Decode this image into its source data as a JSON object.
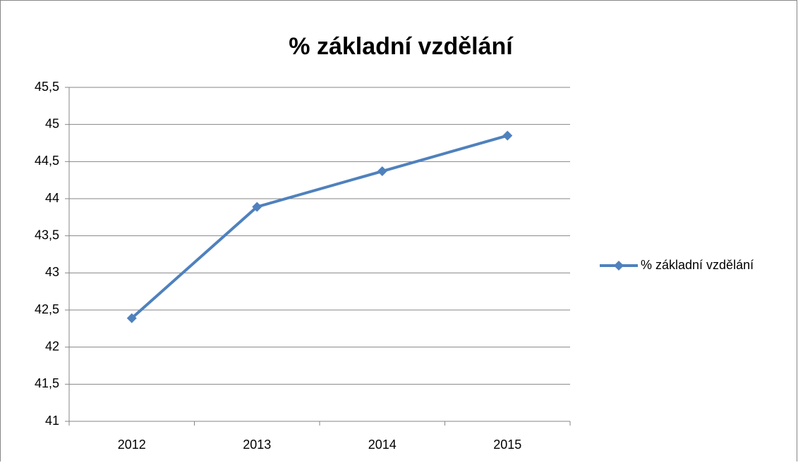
{
  "chart_data": {
    "type": "line",
    "title": "% základní vzdělání",
    "categories": [
      "2012",
      "2013",
      "2014",
      "2015"
    ],
    "series": [
      {
        "name": "% základní vzdělání",
        "color": "#4f81bd",
        "values": [
          42.39,
          43.89,
          44.37,
          44.85
        ]
      }
    ],
    "ylim": [
      41,
      45.5
    ],
    "yticks": [
      41,
      {
        "value": 41.5,
        "label": "41,5"
      },
      42,
      {
        "value": 42.5,
        "label": "42,5"
      },
      43,
      {
        "value": 43.5,
        "label": "43,5"
      },
      44,
      {
        "value": 44.5,
        "label": "44,5"
      },
      45,
      {
        "value": 45.5,
        "label": "45,5"
      }
    ],
    "grid": true,
    "legend": "right"
  }
}
